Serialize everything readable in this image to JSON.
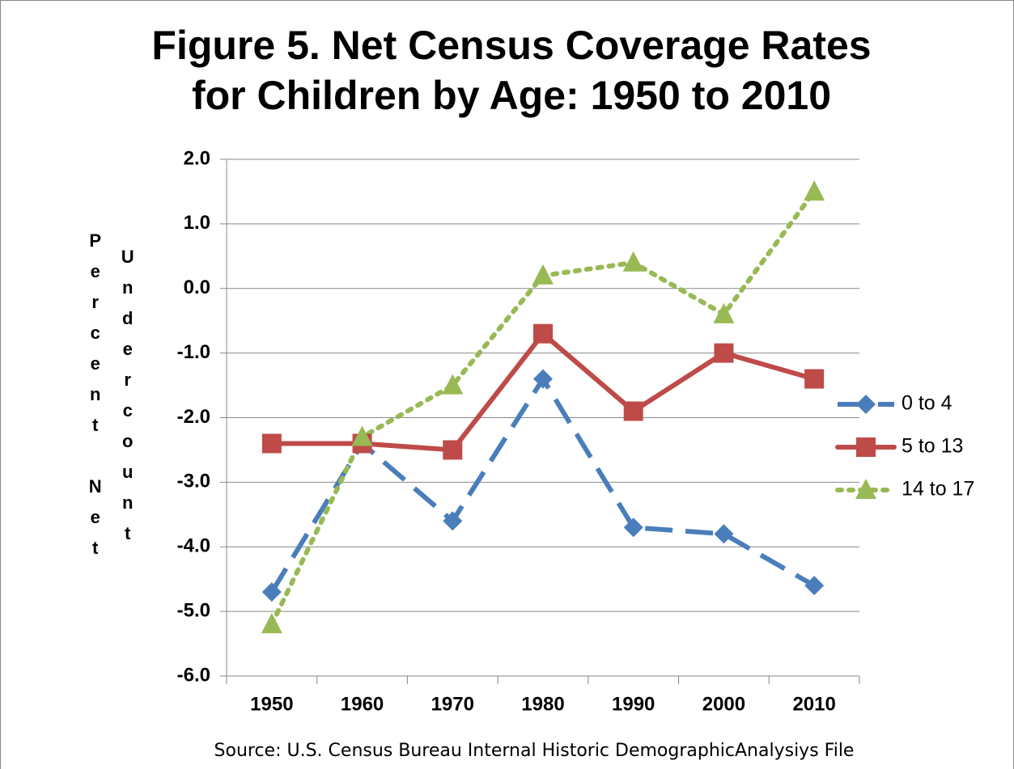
{
  "chart_data": {
    "type": "line",
    "title": [
      "Figure 5. Net Census Coverage Rates",
      "for Children by Age: 1950 to 2010"
    ],
    "ylabel": [
      "Percent Net",
      "Undercount"
    ],
    "source": "Source: U.S. Census Bureau Internal  Historic DemographicAnalysiys File",
    "categories": [
      "1950",
      "1960",
      "1970",
      "1980",
      "1990",
      "2000",
      "2010"
    ],
    "series": [
      {
        "name": "0 to 4",
        "color": "#4a7ebb",
        "marker": "diamond",
        "line_style": "dashed",
        "values": [
          -4.7,
          -2.4,
          -3.6,
          -1.4,
          -3.7,
          -3.8,
          -4.6
        ]
      },
      {
        "name": "5 to 13",
        "color": "#be4b48",
        "marker": "square",
        "line_style": "solid",
        "values": [
          -2.4,
          -2.4,
          -2.5,
          -0.7,
          -1.9,
          -1.0,
          -1.4
        ]
      },
      {
        "name": "14 to 17",
        "color": "#98b954",
        "marker": "triangle",
        "line_style": "dotted",
        "values": [
          -5.2,
          -2.3,
          -1.5,
          0.2,
          0.4,
          -0.4,
          1.5
        ]
      }
    ],
    "ylim": [
      -6,
      2
    ],
    "yticks": [
      {
        "value": -6,
        "label": "-6.0"
      },
      {
        "value": -5,
        "label": "-5.0"
      },
      {
        "value": -4,
        "label": "-4.0"
      },
      {
        "value": -3,
        "label": "-3.0"
      },
      {
        "value": -2,
        "label": "-2.0"
      },
      {
        "value": -1,
        "label": "-1.0"
      },
      {
        "value": 0,
        "label": "0.0"
      },
      {
        "value": 1,
        "label": "1.0"
      },
      {
        "value": 2,
        "label": "2.0"
      }
    ],
    "grid": true,
    "legend": "right"
  }
}
